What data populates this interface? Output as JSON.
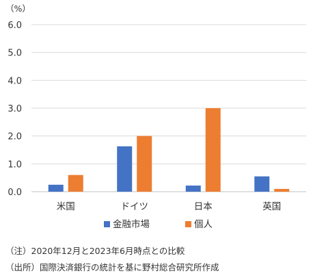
{
  "chart_data": {
    "type": "bar",
    "unit_label": "（%）",
    "categories": [
      "米国",
      "ドイツ",
      "日本",
      "英国"
    ],
    "series": [
      {
        "name": "金融市場",
        "color": "#4472c4",
        "values": [
          0.25,
          1.63,
          0.22,
          0.55
        ]
      },
      {
        "name": "個人",
        "color": "#ed7d31",
        "values": [
          0.6,
          2.0,
          3.0,
          0.1
        ]
      }
    ],
    "ylim": [
      0,
      6
    ],
    "yticks": [
      "0.0",
      "1.0",
      "2.0",
      "3.0",
      "4.0",
      "5.0",
      "6.0"
    ],
    "grid": true,
    "legend": "bottom"
  },
  "notes": [
    "（注）2020年12月と2023年6月時点との比較",
    "（出所）国際決済銀行の統計を基に野村総合研究所作成"
  ]
}
